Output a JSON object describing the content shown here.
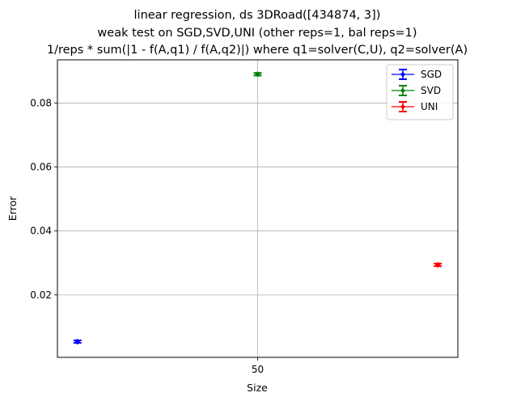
{
  "chart_data": {
    "type": "scatter",
    "title_lines": [
      "linear regression, ds 3DRoad([434874, 3])",
      "weak test on SGD,SVD,UNI (other reps=1, bal reps=1)",
      "1/reps * sum(|1 - f(A,q1) / f(A,q2)|) where q1=solver(C,U), q2=solver(A)"
    ],
    "xlabel": "Size",
    "ylabel": "Error",
    "x_ticks": [
      "50"
    ],
    "y_ticks": [
      0.02,
      0.04,
      0.06,
      0.08
    ],
    "y_tick_labels": [
      "0.02",
      "0.04",
      "0.06",
      "0.08"
    ],
    "ylim": [
      0.0005,
      0.0935
    ],
    "grid": true,
    "legend_position": "top-right",
    "series": [
      {
        "name": "SGD",
        "color": "#0000ff",
        "x_offset": -0.45,
        "value": 0.0054,
        "err": 0.0004
      },
      {
        "name": "SVD",
        "color": "#008000",
        "x_offset": 0.0,
        "value": 0.089,
        "err": 0.0004
      },
      {
        "name": "UNI",
        "color": "#ff0000",
        "x_offset": 0.45,
        "value": 0.0294,
        "err": 0.0004
      }
    ]
  }
}
